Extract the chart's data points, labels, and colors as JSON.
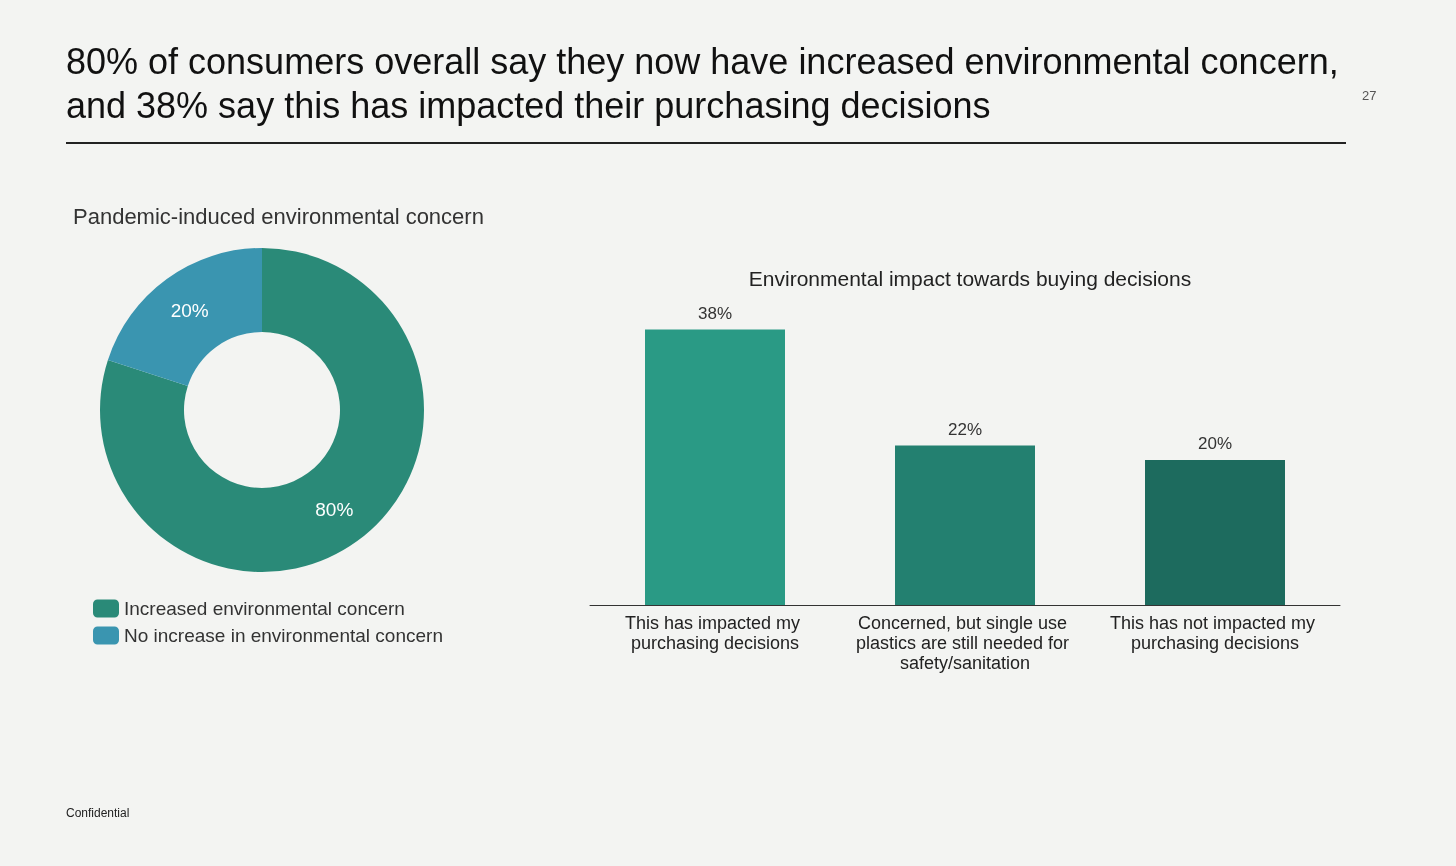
{
  "chart_data": [
    {
      "type": "donut",
      "title": "80% of consumers overall say they now have increased  environmental concern, and 38% say this has impacted their purchasing decisions",
      "subtitle": "Pandemic-induced environmental concern",
      "categories": [
        "Increased environmental concern",
        "No increase in environmental concern"
      ],
      "values": [
        80,
        20
      ],
      "colors": [
        "#2a8a78",
        "#3a95b0"
      ],
      "value_labels": [
        "80%",
        "20%"
      ],
      "legend": "bottom left",
      "annotations": [
        "27",
        "Confidential"
      ]
    },
    {
      "type": "bar",
      "title": "Environmental impact towards buying decisions",
      "categories": [
        "This has impacted my purchasing decisions",
        "Concerned, but single use plastics are still needed for safety/sanitation",
        "This has not impacted my purchasing decisions"
      ],
      "values": [
        38,
        22,
        20
      ],
      "colors": [
        "#2a9a85",
        "#238070",
        "#1d6b5e"
      ],
      "value_labels": [
        "38%",
        "22%",
        "20%"
      ]
    }
  ]
}
